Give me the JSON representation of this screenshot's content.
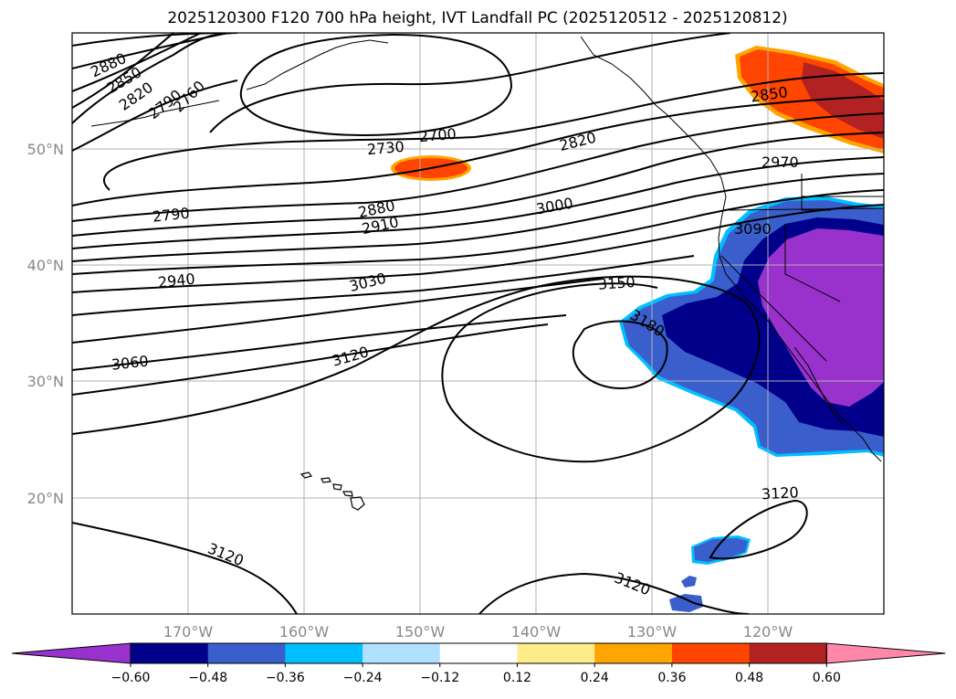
{
  "title": "2025120300 F120 700 hPa height, IVT Landfall PC (2025120512 - 2025120812)",
  "lat_labels": [
    "50°N",
    "40°N",
    "30°N",
    "20°N"
  ],
  "lon_labels": [
    "170°W",
    "160°W",
    "150°W",
    "140°W",
    "130°W",
    "120°W"
  ],
  "contour_labels": [
    "2880",
    "2850",
    "2820",
    "2790",
    "2760",
    "2700",
    "2730",
    "2820",
    "2850",
    "2970",
    "2790",
    "2880",
    "2910",
    "3000",
    "3090",
    "2940",
    "3030",
    "3150",
    "3180",
    "3060",
    "3120",
    "3120",
    "3120",
    "3120"
  ],
  "colorbar": {
    "ticks": [
      "−0.60",
      "−0.48",
      "−0.36",
      "−0.24",
      "−0.12",
      "0.12",
      "0.24",
      "0.36",
      "0.48",
      "0.60"
    ],
    "colors": [
      "#9932cc",
      "#00008b",
      "#3a5fcd",
      "#00bfff",
      "#b0e2ff",
      "#ffffff",
      "#ffec8b",
      "#ffa500",
      "#ff4500",
      "#b22222",
      "#ff88aa"
    ]
  },
  "map_features": {
    "shading_regions": [
      "northwest-positive",
      "midpacific-positive",
      "california-negative",
      "subtropical-negative"
    ],
    "islands": [
      "hawaii"
    ],
    "height_contours": "700 hPa",
    "coastline": "north-america-west"
  }
}
